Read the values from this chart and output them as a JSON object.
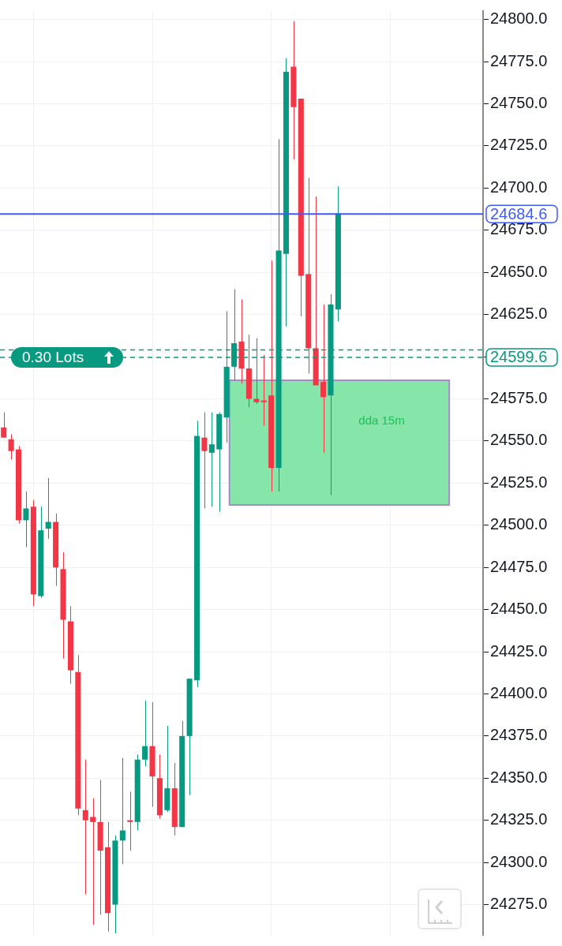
{
  "chart_data": {
    "type": "candlestick",
    "categories": [
      null,
      null,
      null,
      null,
      null,
      null,
      null,
      null,
      null,
      null,
      null,
      null,
      null,
      null,
      null,
      null,
      null,
      null,
      null,
      null,
      null,
      null,
      null,
      null,
      null,
      null,
      null,
      null,
      null,
      null,
      null,
      null,
      null,
      null,
      null,
      null,
      null,
      null,
      null,
      null,
      null,
      null,
      null,
      null,
      null,
      null,
      null,
      null,
      null,
      null,
      null,
      null,
      null,
      null,
      null,
      null,
      null,
      null,
      null,
      null,
      null,
      null,
      null,
      null,
      null
    ],
    "ohlc": [
      [
        24558,
        24567,
        24552,
        24552
      ],
      [
        24551,
        24554,
        24539,
        24544
      ],
      [
        24545,
        24547,
        24501,
        24503
      ],
      [
        24503,
        24520,
        24487,
        24510
      ],
      [
        24511,
        24515,
        24452,
        24459
      ],
      [
        24458,
        24511,
        24457,
        24497
      ],
      [
        24498,
        24528,
        24492,
        24502
      ],
      [
        24502,
        24507,
        24464,
        24475
      ],
      [
        24474,
        24484,
        24421,
        24444
      ],
      [
        24443,
        24452,
        24406,
        24414
      ],
      [
        24413,
        24423,
        24328,
        24332
      ],
      [
        24331,
        24361,
        24281,
        24325
      ],
      [
        24327,
        24338,
        24263,
        24324
      ],
      [
        24324,
        24349,
        24269,
        24307
      ],
      [
        24309,
        24324,
        24259,
        24270
      ],
      [
        24275,
        24316,
        24258,
        24313
      ],
      [
        24313,
        24362,
        24299,
        24319
      ],
      [
        24325,
        24342,
        24307,
        24324
      ],
      [
        24324,
        24364,
        24319,
        24361
      ],
      [
        24361,
        24396,
        24357,
        24369
      ],
      [
        24369,
        24395,
        24333,
        24351
      ],
      [
        24350,
        24364,
        24326,
        24328
      ],
      [
        24331,
        24381,
        24330,
        24344
      ],
      [
        24344,
        24359,
        24316,
        24321
      ],
      [
        24321,
        24384,
        24321,
        24375
      ],
      [
        24375,
        24409,
        24340,
        24409
      ],
      [
        24408,
        24562,
        24404,
        24553
      ],
      [
        24552,
        24567,
        24510,
        24544
      ],
      [
        24543,
        24567,
        24511,
        24548
      ],
      [
        24545,
        24567,
        24508,
        24566
      ],
      [
        24564,
        24627,
        24549,
        24594
      ],
      [
        24594,
        24640,
        24586,
        24608
      ],
      [
        24609,
        24634,
        24584,
        24593
      ],
      [
        24593,
        24613,
        24570,
        24575
      ],
      [
        24575,
        24611,
        24572,
        24573
      ],
      [
        24574,
        24601,
        24559,
        24573
      ],
      [
        24577,
        24657,
        24520,
        24534
      ],
      [
        24534,
        24729,
        24520,
        24663
      ],
      [
        24661,
        24777,
        24618,
        24769
      ],
      [
        24772,
        24799,
        24717,
        24748
      ],
      [
        24753,
        24753,
        24624,
        24648
      ],
      [
        24649,
        24706,
        24590,
        24605
      ],
      [
        24605,
        24695,
        24583,
        24583
      ],
      [
        24585,
        24631,
        24543,
        24576
      ],
      [
        24577,
        24637,
        24518,
        24631
      ],
      [
        24628,
        24701,
        24621,
        24685
      ],
      null,
      null,
      null,
      null,
      null,
      null,
      null,
      null,
      null,
      null,
      null,
      null,
      null,
      null,
      null,
      null,
      null,
      null,
      null
    ],
    "colors": [
      "#f23645",
      "#f23645",
      "#f23645",
      "#089981",
      "#f23645",
      "#089981",
      "#089981",
      "#f23645",
      "#f23645",
      "#f23645",
      "#f23645",
      "#f23645",
      "#f23645",
      "#f23645",
      "#f23645",
      "#089981",
      "#089981",
      "#f23645",
      "#089981",
      "#089981",
      "#f23645",
      "#f23645",
      "#089981",
      "#f23645",
      "#089981",
      "#089981",
      "#089981",
      "#f23645",
      "#089981",
      "#089981",
      "#089981",
      "#089981",
      "#f23645",
      "#f23645",
      "#f23645",
      "#f23645",
      "#f23645",
      "#089981",
      "#089981",
      "#f23645",
      "#f23645",
      "#f23645",
      "#f23645",
      "#f23645",
      "#089981",
      "#089981",
      null,
      null,
      null,
      null,
      null,
      null,
      null,
      null,
      null,
      null,
      null,
      null,
      null,
      null,
      null,
      null,
      null,
      null,
      null
    ],
    "ylim": [
      24257,
      24805
    ],
    "yticks": [
      {
        "value": 24275,
        "label": "24275.0"
      },
      {
        "value": 24300,
        "label": "24300.0"
      },
      {
        "value": 24325,
        "label": "24325.0"
      },
      {
        "value": 24350,
        "label": "24350.0"
      },
      {
        "value": 24375,
        "label": "24375.0"
      },
      {
        "value": 24400,
        "label": "24400.0"
      },
      {
        "value": 24425,
        "label": "24425.0"
      },
      {
        "value": 24450,
        "label": "24450.0"
      },
      {
        "value": 24475,
        "label": "24475.0"
      },
      {
        "value": 24500,
        "label": "24500.0"
      },
      {
        "value": 24525,
        "label": "24525.0"
      },
      {
        "value": 24550,
        "label": "24550.0"
      },
      {
        "value": 24575,
        "label": "24575.0"
      },
      {
        "value": 24600,
        "label": null
      },
      {
        "value": 24625,
        "label": "24625.0"
      },
      {
        "value": 24650,
        "label": "24650.0"
      },
      {
        "value": 24675,
        "label": "24675.0"
      },
      {
        "value": 24700,
        "label": "24700.0"
      },
      {
        "value": 24725,
        "label": "24725.0"
      },
      {
        "value": 24750,
        "label": "24750.0"
      },
      {
        "value": 24775,
        "label": "24775.0"
      },
      {
        "value": 24800,
        "label": "24800.0"
      }
    ],
    "grid": true,
    "tick_labels": "y",
    "ref_lines": [
      {
        "axis": "y",
        "value": 24684.6,
        "label": "24684.6",
        "color": "#3d5afe",
        "line_style": "solid"
      },
      {
        "axis": "y",
        "value": 24604,
        "color": "#089981",
        "line_style": "dashed"
      },
      {
        "axis": "y",
        "value": 24599.6,
        "label": "24599.6",
        "color": "#089981",
        "line_style": "dashed"
      }
    ],
    "bands": [
      {
        "axis": "y",
        "from": 24512,
        "to": 24586,
        "label": "dda 15m",
        "color": "#86e5a8"
      }
    ],
    "annotations": [
      {
        "text": "0.30 Lots",
        "y": 24599.6
      }
    ]
  }
}
